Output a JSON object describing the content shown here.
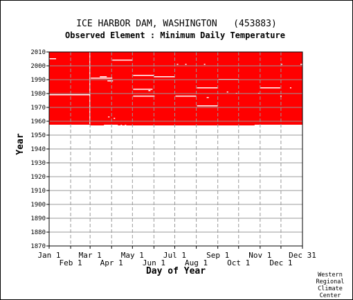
{
  "chart_data": {
    "type": "heatmap",
    "title": "ICE HARBOR DAM, WASHINGTON   (453883)",
    "subtitle": "Observed Element : Minimum Daily Temperature",
    "xlabel": "Day of Year",
    "ylabel": "Year",
    "xlim": [
      1,
      366
    ],
    "ylim": [
      1870,
      2010
    ],
    "x_ticks": [
      {
        "label": "Jan 1",
        "day": 1,
        "row": 1
      },
      {
        "label": "Feb 1",
        "day": 32,
        "row": 2
      },
      {
        "label": "Mar 1",
        "day": 60,
        "row": 1
      },
      {
        "label": "Apr 1",
        "day": 91,
        "row": 2
      },
      {
        "label": "May 1",
        "day": 121,
        "row": 1
      },
      {
        "label": "Jun 1",
        "day": 152,
        "row": 2
      },
      {
        "label": "Jul 1",
        "day": 182,
        "row": 1
      },
      {
        "label": "Aug 1",
        "day": 213,
        "row": 2
      },
      {
        "label": "Sep 1",
        "day": 244,
        "row": 1
      },
      {
        "label": "Oct 1",
        "day": 274,
        "row": 2
      },
      {
        "label": "Nov 1",
        "day": 305,
        "row": 1
      },
      {
        "label": "Dec 1",
        "day": 335,
        "row": 2
      },
      {
        "label": "Dec 31",
        "day": 366,
        "row": 1
      }
    ],
    "y_ticks": [
      "1870",
      "1880",
      "1890",
      "1900",
      "1910",
      "1920",
      "1930",
      "1940",
      "1950",
      "1960",
      "1970",
      "1980",
      "1990",
      "2000",
      "2010"
    ],
    "grid": true,
    "data_color": "#ff0000",
    "observed_range": {
      "start_year": 1957,
      "end_year": 2010,
      "day_start": 1,
      "day_end": 366
    },
    "missing_segments": [
      {
        "year": 2005,
        "day_start": 1,
        "day_end": 11
      },
      {
        "year": 1979,
        "day_start": 1,
        "day_end": 60
      },
      {
        "year": 1957,
        "day_start": 1,
        "day_end": 60
      },
      {
        "year": 1991,
        "day_start": 61,
        "day_end": 92
      },
      {
        "year": 1992,
        "day_start": 74,
        "day_end": 84
      },
      {
        "year": 1989,
        "day_start": 85,
        "day_end": 93
      },
      {
        "year": 2004,
        "day_start": 92,
        "day_end": 121
      },
      {
        "year": 1993,
        "day_start": 122,
        "day_end": 152
      },
      {
        "year": 1983,
        "day_start": 122,
        "day_end": 150
      },
      {
        "year": 1978,
        "day_start": 122,
        "day_end": 153
      },
      {
        "year": 1982,
        "day_start": 144,
        "day_end": 147
      },
      {
        "year": 1992,
        "day_start": 152,
        "day_end": 182
      },
      {
        "year": 2001,
        "day_start": 185,
        "day_end": 187
      },
      {
        "year": 1978,
        "day_start": 183,
        "day_end": 213
      },
      {
        "year": 2001,
        "day_start": 197,
        "day_end": 199
      },
      {
        "year": 1984,
        "day_start": 214,
        "day_end": 244
      },
      {
        "year": 2001,
        "day_start": 224,
        "day_end": 226
      },
      {
        "year": 1971,
        "day_start": 214,
        "day_end": 244
      },
      {
        "year": 1977,
        "day_start": 228,
        "day_end": 231
      },
      {
        "year": 1990,
        "day_start": 245,
        "day_end": 274
      },
      {
        "year": 1981,
        "day_start": 257,
        "day_end": 259
      },
      {
        "year": 1980,
        "day_start": 270,
        "day_end": 272
      },
      {
        "year": 1984,
        "day_start": 305,
        "day_end": 334
      },
      {
        "year": 1980,
        "day_start": 302,
        "day_end": 304
      },
      {
        "year": 1978,
        "day_start": 334,
        "day_end": 336
      },
      {
        "year": 2001,
        "day_start": 335,
        "day_end": 337
      },
      {
        "year": 1984,
        "day_start": 348,
        "day_end": 350
      },
      {
        "year": 2001,
        "day_start": 363,
        "day_end": 366
      },
      {
        "year": 1957,
        "day_start": 80,
        "day_end": 100
      },
      {
        "year": 1957,
        "day_start": 104,
        "day_end": 106
      },
      {
        "year": 1957,
        "day_start": 110,
        "day_end": 112
      },
      {
        "year": 1957,
        "day_start": 297,
        "day_end": 366
      },
      {
        "year": 1962,
        "day_start": 94,
        "day_end": 96
      },
      {
        "year": 1963,
        "day_start": 86,
        "day_end": 88
      }
    ],
    "missing_bands": [
      {
        "day": 59,
        "start_year": 1958,
        "end_year": 2010
      }
    ]
  },
  "footer": {
    "credit_lines": [
      "Western",
      "Regional",
      "Climate",
      "Center"
    ]
  }
}
